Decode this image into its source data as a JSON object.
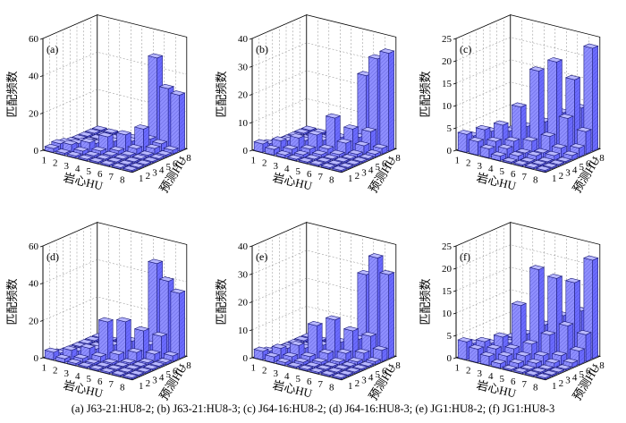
{
  "caption": "(a) J63-21:HU8-2; (b) J63-21:HU8-3; (c) J64-16:HU8-2; (d) J64-16:HU8-3; (e) JG1:HU8-2; (f) JG1:HU8-3",
  "colors": {
    "bar_front": "#8f8fff",
    "bar_side": "#6b6bff",
    "bar_top": "#b8b8ff",
    "bar_stroke": "#1a1a7a",
    "grid": "#8a8a8a"
  },
  "chart_data": [
    {
      "type": "bar3d",
      "panel": "(a)",
      "xlabel": "岩心HU",
      "ylabel": "预测HU",
      "zlabel": "匹配频数",
      "x_ticks": [
        "1",
        "2",
        "3",
        "4",
        "5",
        "6",
        "7",
        "8"
      ],
      "y_ticks": [
        "1",
        "2",
        "3",
        "4",
        "5",
        "6",
        "7",
        "8"
      ],
      "zlim": [
        0,
        60
      ],
      "z_ticks": [
        "0",
        "20",
        "40",
        "60"
      ],
      "values": [
        [
          2,
          1,
          1,
          0,
          0,
          0,
          0,
          0
        ],
        [
          3,
          4,
          2,
          1,
          0,
          0,
          0,
          0
        ],
        [
          2,
          3,
          5,
          2,
          1,
          0,
          0,
          0
        ],
        [
          1,
          2,
          3,
          8,
          2,
          1,
          0,
          0
        ],
        [
          0,
          1,
          2,
          4,
          9,
          3,
          1,
          0
        ],
        [
          0,
          0,
          1,
          2,
          4,
          12,
          3,
          1
        ],
        [
          0,
          0,
          0,
          1,
          2,
          5,
          4,
          2
        ],
        [
          0,
          0,
          0,
          0,
          1,
          47,
          32,
          30
        ]
      ]
    },
    {
      "type": "bar3d",
      "panel": "(b)",
      "xlabel": "岩心HU",
      "ylabel": "预测HU",
      "zlabel": "匹配频数",
      "x_ticks": [
        "1",
        "2",
        "3",
        "4",
        "5",
        "6",
        "7",
        "8"
      ],
      "y_ticks": [
        "1",
        "2",
        "3",
        "4",
        "5",
        "6",
        "7",
        "8"
      ],
      "zlim": [
        0,
        40
      ],
      "z_ticks": [
        "0",
        "10",
        "20",
        "30",
        "40"
      ],
      "values": [
        [
          3,
          2,
          1,
          0,
          0,
          0,
          0,
          0
        ],
        [
          2,
          4,
          2,
          1,
          0,
          0,
          0,
          0
        ],
        [
          1,
          3,
          5,
          2,
          1,
          0,
          0,
          0
        ],
        [
          0,
          1,
          3,
          6,
          2,
          1,
          0,
          0
        ],
        [
          0,
          0,
          1,
          3,
          12,
          4,
          1,
          0
        ],
        [
          0,
          0,
          0,
          1,
          4,
          8,
          3,
          1
        ],
        [
          0,
          0,
          0,
          0,
          1,
          4,
          7,
          2
        ],
        [
          0,
          0,
          0,
          0,
          0,
          25,
          32,
          35
        ]
      ]
    },
    {
      "type": "bar3d",
      "panel": "(c)",
      "xlabel": "岩心HU",
      "ylabel": "预测HU",
      "zlabel": "匹配频数",
      "x_ticks": [
        "1",
        "2",
        "3",
        "4",
        "5",
        "6",
        "7",
        "8"
      ],
      "y_ticks": [
        "1",
        "2",
        "3",
        "4",
        "5",
        "6",
        "7",
        "8"
      ],
      "zlim": [
        0,
        25
      ],
      "z_ticks": [
        "0",
        "5",
        "10",
        "15",
        "20",
        "25"
      ],
      "values": [
        [
          4,
          3,
          2,
          1,
          0,
          0,
          0,
          0
        ],
        [
          3,
          5,
          3,
          2,
          1,
          0,
          0,
          0
        ],
        [
          2,
          4,
          6,
          3,
          1,
          1,
          0,
          0
        ],
        [
          1,
          2,
          4,
          10,
          3,
          1,
          1,
          0
        ],
        [
          0,
          1,
          2,
          5,
          18,
          4,
          2,
          1
        ],
        [
          0,
          0,
          1,
          3,
          6,
          20,
          8,
          2
        ],
        [
          0,
          0,
          0,
          1,
          3,
          8,
          16,
          5
        ],
        [
          0,
          0,
          0,
          0,
          2,
          4,
          9,
          23
        ]
      ]
    },
    {
      "type": "bar3d",
      "panel": "(d)",
      "xlabel": "岩心HU",
      "ylabel": "预测HU",
      "zlabel": "匹配频数",
      "x_ticks": [
        "1",
        "2",
        "3",
        "4",
        "5",
        "6",
        "7",
        "8"
      ],
      "y_ticks": [
        "1",
        "2",
        "3",
        "4",
        "5",
        "6",
        "7",
        "8"
      ],
      "zlim": [
        0,
        60
      ],
      "z_ticks": [
        "0",
        "20",
        "40",
        "60"
      ],
      "values": [
        [
          4,
          2,
          1,
          0,
          0,
          0,
          0,
          0
        ],
        [
          2,
          5,
          2,
          1,
          0,
          0,
          0,
          0
        ],
        [
          1,
          3,
          6,
          3,
          1,
          0,
          0,
          0
        ],
        [
          0,
          1,
          4,
          20,
          4,
          1,
          0,
          0
        ],
        [
          0,
          0,
          2,
          6,
          20,
          5,
          1,
          0
        ],
        [
          0,
          0,
          1,
          3,
          8,
          15,
          4,
          1
        ],
        [
          0,
          0,
          0,
          1,
          3,
          6,
          12,
          3
        ],
        [
          0,
          0,
          0,
          0,
          1,
          48,
          40,
          35
        ]
      ]
    },
    {
      "type": "bar3d",
      "panel": "(e)",
      "xlabel": "岩心HU",
      "ylabel": "预测HU",
      "zlabel": "匹配频数",
      "x_ticks": [
        "1",
        "2",
        "3",
        "4",
        "5",
        "6",
        "7",
        "8"
      ],
      "y_ticks": [
        "1",
        "2",
        "3",
        "4",
        "5",
        "6",
        "7",
        "8"
      ],
      "zlim": [
        0,
        40
      ],
      "z_ticks": [
        "0",
        "10",
        "20",
        "30",
        "40"
      ],
      "values": [
        [
          3,
          2,
          1,
          0,
          0,
          0,
          0,
          0
        ],
        [
          2,
          4,
          2,
          1,
          0,
          0,
          0,
          0
        ],
        [
          1,
          3,
          5,
          2,
          1,
          0,
          0,
          0
        ],
        [
          0,
          1,
          3,
          12,
          3,
          1,
          0,
          0
        ],
        [
          0,
          0,
          1,
          4,
          14,
          3,
          1,
          0
        ],
        [
          0,
          0,
          0,
          2,
          5,
          10,
          3,
          1
        ],
        [
          0,
          0,
          0,
          1,
          2,
          6,
          8,
          4
        ],
        [
          0,
          0,
          0,
          0,
          1,
          28,
          35,
          30
        ]
      ]
    },
    {
      "type": "bar3d",
      "panel": "(f)",
      "xlabel": "岩心HU",
      "ylabel": "预测HU",
      "zlabel": "匹配频数",
      "x_ticks": [
        "1",
        "2",
        "3",
        "4",
        "5",
        "6",
        "7",
        "8"
      ],
      "y_ticks": [
        "1",
        "2",
        "3",
        "4",
        "5",
        "6",
        "7",
        "8"
      ],
      "zlim": [
        0,
        25
      ],
      "z_ticks": [
        "0",
        "5",
        "10",
        "15",
        "20",
        "25"
      ],
      "values": [
        [
          4,
          3,
          2,
          1,
          0,
          0,
          0,
          0
        ],
        [
          3,
          4,
          3,
          2,
          1,
          0,
          0,
          0
        ],
        [
          2,
          3,
          5,
          3,
          2,
          1,
          0,
          0
        ],
        [
          1,
          2,
          3,
          12,
          4,
          2,
          1,
          0
        ],
        [
          0,
          1,
          2,
          5,
          20,
          6,
          2,
          1
        ],
        [
          0,
          0,
          1,
          3,
          7,
          18,
          8,
          3
        ],
        [
          0,
          0,
          0,
          1,
          4,
          9,
          17,
          6
        ],
        [
          0,
          0,
          0,
          0,
          2,
          5,
          10,
          22
        ]
      ]
    }
  ]
}
